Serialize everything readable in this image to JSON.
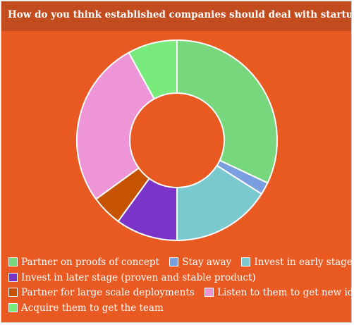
{
  "title": "How do you think established companies should deal with startups?",
  "colors": {
    "background": "#e95a22",
    "title_bar": "#c34c1e"
  },
  "chart_data": {
    "type": "pie",
    "style": "donut",
    "title": "How do you think established companies should deal with startups?",
    "legend_position": "bottom",
    "slices": [
      {
        "label": "Partner on proofs of concept",
        "value": 32,
        "color": "#77d77d"
      },
      {
        "label": "Stay away",
        "value": 2,
        "color": "#7a9fe0"
      },
      {
        "label": "Invest in early stage",
        "value": 16,
        "color": "#79c9ce"
      },
      {
        "label": "Invest in later stage (proven and stable product)",
        "value": 10,
        "color": "#7a35c8"
      },
      {
        "label": "Partner for large scale deployments",
        "value": 5,
        "color": "#c55302"
      },
      {
        "label": "Listen to them to get new ideas",
        "value": 27,
        "color": "#ee95d7"
      },
      {
        "label": "Acquire them to get the team",
        "value": 8,
        "color": "#79ea7c"
      }
    ]
  }
}
